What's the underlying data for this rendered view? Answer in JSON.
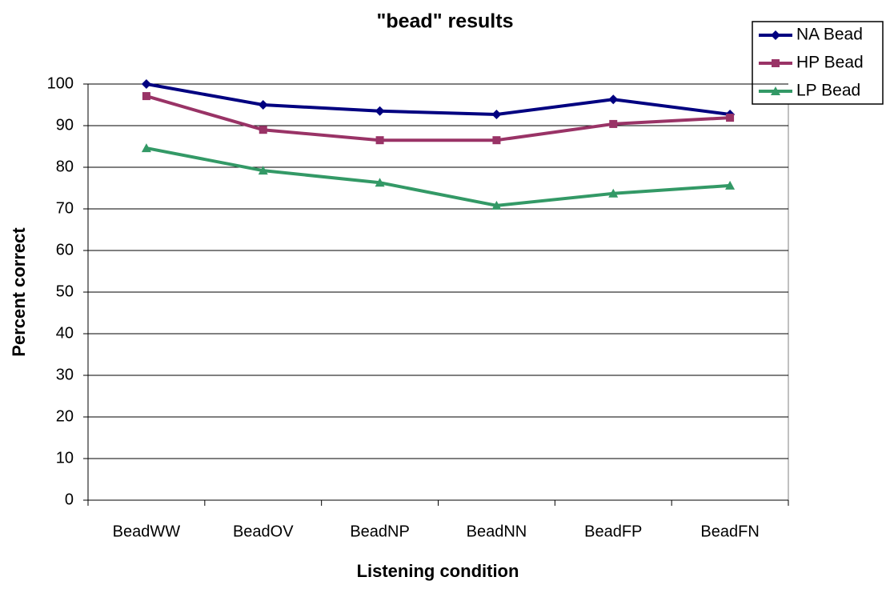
{
  "chart_data": {
    "type": "line",
    "title": "\"bead\" results",
    "x_label": "Listening condition",
    "y_label": "Percent correct",
    "categories": [
      "BeadWW",
      "BeadOV",
      "BeadNP",
      "BeadNN",
      "BeadFP",
      "BeadFN"
    ],
    "series": [
      {
        "name": "NA Bead",
        "color": "#000080",
        "marker": "diamond",
        "values": [
          100,
          95.0,
          93.5,
          92.7,
          96.3,
          92.7
        ]
      },
      {
        "name": "HP Bead",
        "color": "#993366",
        "marker": "square",
        "values": [
          97.1,
          89.0,
          86.5,
          86.5,
          90.4,
          91.9
        ]
      },
      {
        "name": "LP Bead",
        "color": "#339966",
        "marker": "triangle",
        "values": [
          84.6,
          79.2,
          76.3,
          70.8,
          73.7,
          75.6
        ]
      }
    ],
    "ylim": [
      0,
      100
    ],
    "yticks": [
      0,
      10,
      20,
      30,
      40,
      50,
      60,
      70,
      80,
      90,
      100
    ],
    "grid": true,
    "legend": "top-right"
  }
}
